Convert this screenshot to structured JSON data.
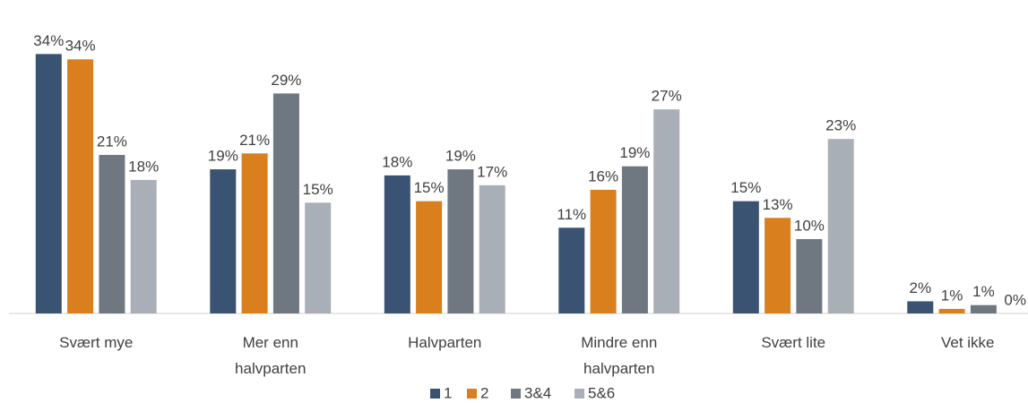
{
  "chart_data": {
    "type": "bar",
    "categories": [
      "Svært mye",
      "Mer enn halvparten",
      "Halvparten",
      "Mindre enn halvparten",
      "Svært lite",
      "Vet ikke"
    ],
    "series": [
      {
        "name": "1",
        "color": "#3a5372",
        "values": [
          34.2,
          19.0,
          18.2,
          11.3,
          14.8,
          1.6
        ],
        "value_labels": [
          "34%",
          "19%",
          "18%",
          "11%",
          "15%",
          "2%"
        ]
      },
      {
        "name": "2",
        "color": "#d97f1e",
        "values": [
          33.5,
          21.1,
          14.8,
          16.3,
          12.6,
          0.6
        ],
        "value_labels": [
          "34%",
          "21%",
          "15%",
          "16%",
          "13%",
          "1%"
        ]
      },
      {
        "name": "3&4",
        "color": "#6f7780",
        "values": [
          20.9,
          29.0,
          19.0,
          19.4,
          9.8,
          1.1
        ],
        "value_labels": [
          "21%",
          "29%",
          "19%",
          "19%",
          "10%",
          "1%"
        ]
      },
      {
        "name": "5&6",
        "color": "#a9afb6",
        "values": [
          17.6,
          14.6,
          16.9,
          26.9,
          23.0,
          0
        ],
        "value_labels": [
          "18%",
          "15%",
          "17%",
          "27%",
          "23%",
          "0%"
        ]
      }
    ],
    "legend": "bottom"
  }
}
